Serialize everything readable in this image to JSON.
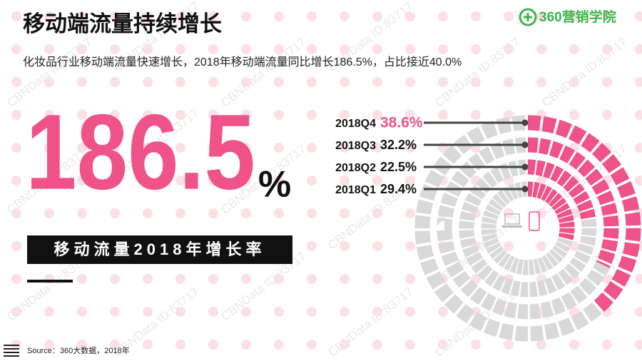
{
  "chart_data": {
    "type": "radial-bar",
    "title": "移动端流量持续增长",
    "subtitle": "化妆品行业移动端流量快速增长，2018年移动端流量同比增长186.5%，占比接近40.0%",
    "headline": "186.5",
    "headline_unit": "%",
    "caption": "移动流量2018年增长率",
    "source": "Source：360大数据，2018年",
    "logo": "360营销学院",
    "watermark": "CBNData ID:83717",
    "categories": [
      "2018Q4",
      "2018Q3",
      "2018Q2",
      "2018Q1"
    ],
    "values": [
      38.6,
      32.2,
      22.5,
      29.4
    ],
    "value_labels": [
      "38.6%",
      "32.2%",
      "22.5%",
      "29.4%"
    ],
    "color": "#f0528a",
    "track_color": "#d9d9d9"
  }
}
